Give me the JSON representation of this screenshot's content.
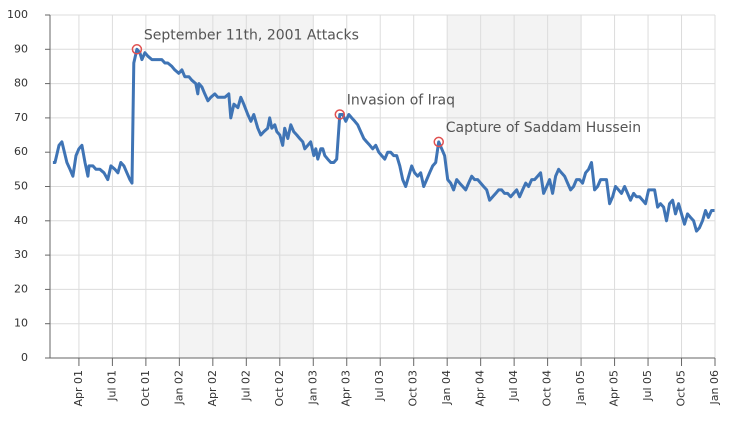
{
  "chart_data": {
    "type": "line",
    "color": "#3f74b5",
    "line_width": 3,
    "grid": true,
    "ylim": [
      0,
      100
    ],
    "yticks": [
      0,
      10,
      20,
      30,
      40,
      50,
      60,
      70,
      80,
      90,
      100
    ],
    "xlim": [
      2001.034,
      2006.0
    ],
    "xticks": [
      {
        "value": 2001.25,
        "label": "Apr 01"
      },
      {
        "value": 2001.5,
        "label": "Jul 01"
      },
      {
        "value": 2001.75,
        "label": "Oct 01"
      },
      {
        "value": 2002.0,
        "label": "Jan 02"
      },
      {
        "value": 2002.25,
        "label": "Apr 02"
      },
      {
        "value": 2002.5,
        "label": "Jul 02"
      },
      {
        "value": 2002.75,
        "label": "Oct 02"
      },
      {
        "value": 2003.0,
        "label": "Jan 03"
      },
      {
        "value": 2003.25,
        "label": "Apr 03"
      },
      {
        "value": 2003.5,
        "label": "Jul 03"
      },
      {
        "value": 2003.75,
        "label": "Oct 03"
      },
      {
        "value": 2004.0,
        "label": "Jan 04"
      },
      {
        "value": 2004.25,
        "label": "Apr 04"
      },
      {
        "value": 2004.5,
        "label": "Jul 04"
      },
      {
        "value": 2004.75,
        "label": "Oct 04"
      },
      {
        "value": 2005.0,
        "label": "Jan 05"
      },
      {
        "value": 2005.25,
        "label": "Apr 05"
      },
      {
        "value": 2005.5,
        "label": "Jul 05"
      },
      {
        "value": 2005.75,
        "label": "Oct 05"
      },
      {
        "value": 2006.0,
        "label": "Jan 06"
      }
    ],
    "shaded_bands": [
      [
        2002.0,
        2003.0
      ],
      [
        2004.0,
        2005.0
      ]
    ],
    "band_color": "#f3f3f3",
    "annotations": [
      {
        "x": 2001.683,
        "y": 90,
        "text": "September 11th, 2001 Attacks"
      },
      {
        "x": 2003.198,
        "y": 71,
        "text": "Invasion of Iraq"
      },
      {
        "x": 2003.937,
        "y": 63,
        "text": "Capture of Saddam Hussein"
      }
    ],
    "annotation_color": "#e05050",
    "x": [
      2001.056,
      2001.071,
      2001.101,
      2001.123,
      2001.16,
      2001.183,
      2001.205,
      2001.228,
      2001.25,
      2001.272,
      2001.295,
      2001.317,
      2001.325,
      2001.354,
      2001.377,
      2001.407,
      2001.437,
      2001.466,
      2001.489,
      2001.519,
      2001.541,
      2001.563,
      2001.586,
      2001.608,
      2001.631,
      2001.646,
      2001.66,
      2001.683,
      2001.705,
      2001.72,
      2001.743,
      2001.765,
      2001.795,
      2001.817,
      2001.84,
      2001.869,
      2001.892,
      2001.914,
      2001.944,
      2001.966,
      2001.996,
      2002.019,
      2002.041,
      2002.071,
      2002.093,
      2002.123,
      2002.138,
      2002.146,
      2002.168,
      2002.19,
      2002.213,
      2002.235,
      2002.265,
      2002.287,
      2002.317,
      2002.34,
      2002.369,
      2002.384,
      2002.407,
      2002.437,
      2002.459,
      2002.481,
      2002.511,
      2002.534,
      2002.556,
      2002.586,
      2002.608,
      2002.631,
      2002.66,
      2002.675,
      2002.69,
      2002.713,
      2002.728,
      2002.75,
      2002.772,
      2002.787,
      2002.81,
      2002.832,
      2002.854,
      2002.877,
      2002.899,
      2002.922,
      2002.937,
      2002.959,
      2002.981,
      2003.004,
      2003.019,
      2003.034,
      2003.056,
      2003.071,
      2003.086,
      2003.108,
      2003.131,
      2003.153,
      2003.175,
      2003.198,
      2003.22,
      2003.243,
      2003.265,
      2003.287,
      2003.31,
      2003.332,
      2003.354,
      2003.377,
      2003.399,
      2003.422,
      2003.444,
      2003.466,
      2003.489,
      2003.511,
      2003.534,
      2003.556,
      2003.578,
      2003.601,
      2003.623,
      2003.646,
      2003.668,
      2003.69,
      2003.713,
      2003.735,
      2003.757,
      2003.78,
      2003.802,
      2003.825,
      2003.847,
      2003.869,
      2003.892,
      2003.914,
      2003.937,
      2003.959,
      2003.981,
      2004.004,
      2004.026,
      2004.048,
      2004.071,
      2004.093,
      2004.116,
      2004.138,
      2004.16,
      2004.183,
      2004.205,
      2004.228,
      2004.25,
      2004.272,
      2004.295,
      2004.317,
      2004.34,
      2004.362,
      2004.384,
      2004.407,
      2004.429,
      2004.451,
      2004.474,
      2004.496,
      2004.519,
      2004.541,
      2004.563,
      2004.586,
      2004.608,
      2004.631,
      2004.653,
      2004.675,
      2004.698,
      2004.72,
      2004.743,
      2004.765,
      2004.787,
      2004.81,
      2004.832,
      2004.854,
      2004.877,
      2004.899,
      2004.922,
      2004.944,
      2004.966,
      2004.989,
      2005.011,
      2005.034,
      2005.056,
      2005.078,
      2005.101,
      2005.123,
      2005.146,
      2005.168,
      2005.19,
      2005.213,
      2005.235,
      2005.257,
      2005.28,
      2005.302,
      2005.325,
      2005.347,
      2005.369,
      2005.392,
      2005.414,
      2005.437,
      2005.459,
      2005.481,
      2005.504,
      2005.526,
      2005.549,
      2005.571,
      2005.593,
      2005.616,
      2005.638,
      2005.66,
      2005.683,
      2005.705,
      2005.728,
      2005.75,
      2005.772,
      2005.795,
      2005.817,
      2005.84,
      2005.862,
      2005.884,
      2005.907,
      2005.929,
      2005.951,
      2005.974,
      2005.996
    ],
    "values": [
      57,
      57,
      62,
      63,
      57,
      55,
      53,
      59,
      61,
      62,
      57,
      53,
      56,
      56,
      55,
      55,
      54,
      52,
      56,
      55,
      54,
      57,
      56,
      54,
      52,
      51,
      86,
      90,
      89,
      87,
      89,
      88,
      87,
      87,
      87,
      87,
      86,
      86,
      85,
      84,
      83,
      84,
      82,
      82,
      81,
      80,
      77,
      80,
      79,
      77,
      75,
      76,
      77,
      76,
      76,
      76,
      77,
      70,
      74,
      73,
      76,
      74,
      71,
      69,
      71,
      67,
      65,
      66,
      67,
      70,
      67,
      68,
      66,
      65,
      62,
      67,
      64,
      68,
      66,
      65,
      64,
      63,
      61,
      62,
      63,
      59,
      61,
      58,
      61,
      61,
      59,
      58,
      57,
      57,
      58,
      71,
      71,
      69,
      71,
      70,
      69,
      68,
      66,
      64,
      63,
      62,
      61,
      62,
      60,
      59,
      58,
      60,
      60,
      59,
      59,
      56,
      52,
      50,
      53,
      56,
      54,
      53,
      54,
      50,
      52,
      54,
      56,
      57,
      63,
      61,
      59,
      52,
      51,
      49,
      52,
      51,
      50,
      49,
      51,
      53,
      52,
      52,
      51,
      50,
      49,
      46,
      47,
      48,
      49,
      49,
      48,
      48,
      47,
      48,
      49,
      47,
      49,
      51,
      50,
      52,
      52,
      53,
      54,
      48,
      50,
      52,
      48,
      53,
      55,
      54,
      53,
      51,
      49,
      50,
      52,
      52,
      51,
      54,
      55,
      57,
      49,
      50,
      52,
      52,
      52,
      45,
      47,
      50,
      49,
      48,
      50,
      48,
      46,
      48,
      47,
      47,
      46,
      45,
      49,
      49,
      49,
      44,
      45,
      44,
      40,
      45,
      46,
      42,
      45,
      42,
      39,
      42,
      41,
      40,
      37,
      38,
      40,
      43,
      41,
      43,
      43
    ]
  }
}
